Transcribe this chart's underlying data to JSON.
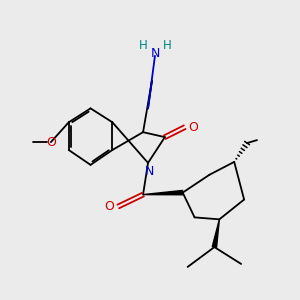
{
  "background_color": "#ebebeb",
  "atom_colors": {
    "C": "#000000",
    "N": "#0000cc",
    "O": "#cc0000",
    "H": "#008888"
  },
  "figsize": [
    3.0,
    3.0
  ],
  "dpi": 100,
  "bond_lw": 1.3,
  "font_size": 8.5
}
